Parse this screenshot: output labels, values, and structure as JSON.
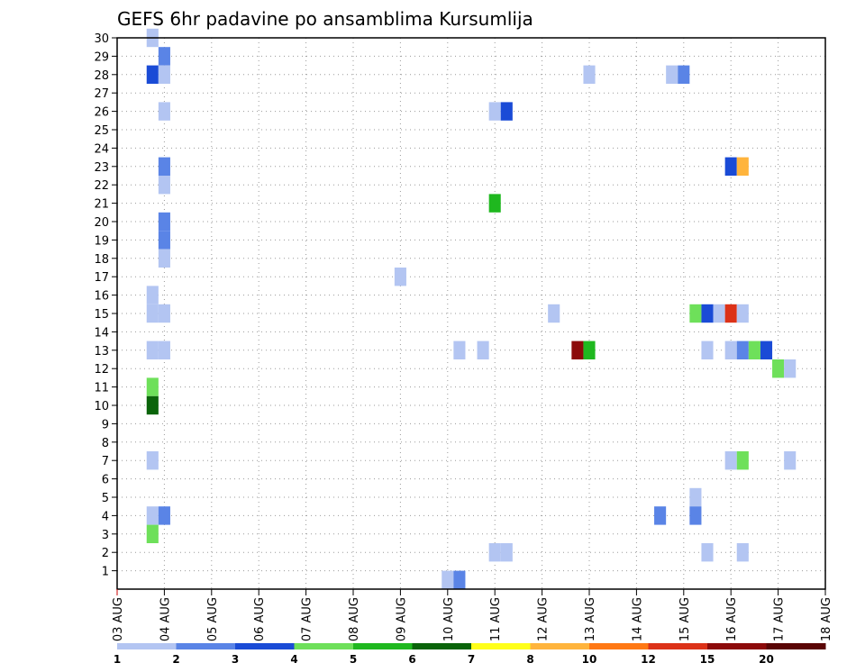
{
  "chart_data": {
    "type": "heatmap",
    "title": "GEFS 6hr padavine po ansamblima Kursumlija",
    "xlabel": "",
    "ylabel": "",
    "x_tick_labels": [
      "03 AUG",
      "04 AUG",
      "05 AUG",
      "06 AUG",
      "07 AUG",
      "08 AUG",
      "09 AUG",
      "10 AUG",
      "11 AUG",
      "12 AUG",
      "13 AUG",
      "14 AUG",
      "15 AUG",
      "16 AUG",
      "17 AUG",
      "18 AUG"
    ],
    "x_range_days": [
      0,
      15
    ],
    "y_tick_labels": [
      "1",
      "2",
      "3",
      "4",
      "5",
      "6",
      "7",
      "8",
      "9",
      "10",
      "11",
      "12",
      "13",
      "14",
      "15",
      "16",
      "17",
      "18",
      "19",
      "20",
      "21",
      "22",
      "23",
      "24",
      "25",
      "26",
      "27",
      "28",
      "29",
      "30"
    ],
    "y_range": [
      0,
      30
    ],
    "grid": true,
    "colorbar": {
      "position": "bottom",
      "colors": [
        "#b3c5f2",
        "#5a84e6",
        "#1a4bd6",
        "#6ee05a",
        "#1fb81f",
        "#0a640a",
        "#ffff1a",
        "#ffb43c",
        "#ff7814",
        "#dc3218",
        "#8c0a0a",
        "#5a0505"
      ],
      "labels": [
        "1",
        "2",
        "3",
        "4",
        "5",
        "6",
        "7",
        "8",
        "10",
        "12",
        "15",
        "20"
      ]
    },
    "cells": [
      {
        "x": 0.75,
        "y": 30,
        "c": 0
      },
      {
        "x": 1.0,
        "y": 29,
        "c": 1
      },
      {
        "x": 0.75,
        "y": 28,
        "c": 2
      },
      {
        "x": 1.0,
        "y": 28,
        "c": 0
      },
      {
        "x": 1.0,
        "y": 26,
        "c": 0
      },
      {
        "x": 1.0,
        "y": 23,
        "c": 1
      },
      {
        "x": 1.0,
        "y": 22,
        "c": 0
      },
      {
        "x": 1.0,
        "y": 20,
        "c": 1
      },
      {
        "x": 1.0,
        "y": 19,
        "c": 1
      },
      {
        "x": 1.0,
        "y": 18,
        "c": 0
      },
      {
        "x": 0.75,
        "y": 16,
        "c": 0
      },
      {
        "x": 0.75,
        "y": 15,
        "c": 0
      },
      {
        "x": 1.0,
        "y": 15,
        "c": 0
      },
      {
        "x": 0.75,
        "y": 13,
        "c": 0
      },
      {
        "x": 1.0,
        "y": 13,
        "c": 0
      },
      {
        "x": 0.75,
        "y": 11,
        "c": 3
      },
      {
        "x": 0.75,
        "y": 10,
        "c": 5
      },
      {
        "x": 0.75,
        "y": 7,
        "c": 0
      },
      {
        "x": 0.75,
        "y": 4,
        "c": 0
      },
      {
        "x": 1.0,
        "y": 4,
        "c": 1
      },
      {
        "x": 0.75,
        "y": 3,
        "c": 3
      },
      {
        "x": 6.0,
        "y": 17,
        "c": 0
      },
      {
        "x": 7.0,
        "y": 0.5,
        "c": 0
      },
      {
        "x": 7.25,
        "y": 0.5,
        "c": 1
      },
      {
        "x": 7.25,
        "y": 13,
        "c": 0
      },
      {
        "x": 7.75,
        "y": 13,
        "c": 0
      },
      {
        "x": 8.0,
        "y": 26,
        "c": 0
      },
      {
        "x": 8.25,
        "y": 26,
        "c": 2
      },
      {
        "x": 8.0,
        "y": 21,
        "c": 4
      },
      {
        "x": 8.0,
        "y": 2,
        "c": 0
      },
      {
        "x": 8.25,
        "y": 2,
        "c": 0
      },
      {
        "x": 9.25,
        "y": 15,
        "c": 0
      },
      {
        "x": 9.75,
        "y": 13,
        "c": 10
      },
      {
        "x": 10.0,
        "y": 13,
        "c": 4
      },
      {
        "x": 10.0,
        "y": 28,
        "c": 0
      },
      {
        "x": 11.5,
        "y": 4,
        "c": 1
      },
      {
        "x": 11.75,
        "y": 28,
        "c": 0
      },
      {
        "x": 12.0,
        "y": 28,
        "c": 1
      },
      {
        "x": 12.25,
        "y": 15,
        "c": 3
      },
      {
        "x": 12.5,
        "y": 15,
        "c": 2
      },
      {
        "x": 12.75,
        "y": 15,
        "c": 0
      },
      {
        "x": 13.0,
        "y": 15,
        "c": 9
      },
      {
        "x": 13.25,
        "y": 15,
        "c": 0
      },
      {
        "x": 12.5,
        "y": 13,
        "c": 0
      },
      {
        "x": 13.0,
        "y": 13,
        "c": 0
      },
      {
        "x": 13.25,
        "y": 13,
        "c": 1
      },
      {
        "x": 13.5,
        "y": 13,
        "c": 3
      },
      {
        "x": 13.75,
        "y": 13,
        "c": 2
      },
      {
        "x": 14.0,
        "y": 12,
        "c": 3
      },
      {
        "x": 14.25,
        "y": 12,
        "c": 0
      },
      {
        "x": 13.0,
        "y": 23,
        "c": 2
      },
      {
        "x": 13.25,
        "y": 23,
        "c": 7
      },
      {
        "x": 13.0,
        "y": 7,
        "c": 0
      },
      {
        "x": 13.25,
        "y": 7,
        "c": 3
      },
      {
        "x": 14.25,
        "y": 7,
        "c": 0
      },
      {
        "x": 12.25,
        "y": 5,
        "c": 0
      },
      {
        "x": 12.25,
        "y": 4,
        "c": 1
      },
      {
        "x": 12.5,
        "y": 2,
        "c": 0
      },
      {
        "x": 13.25,
        "y": 2,
        "c": 0
      }
    ]
  }
}
